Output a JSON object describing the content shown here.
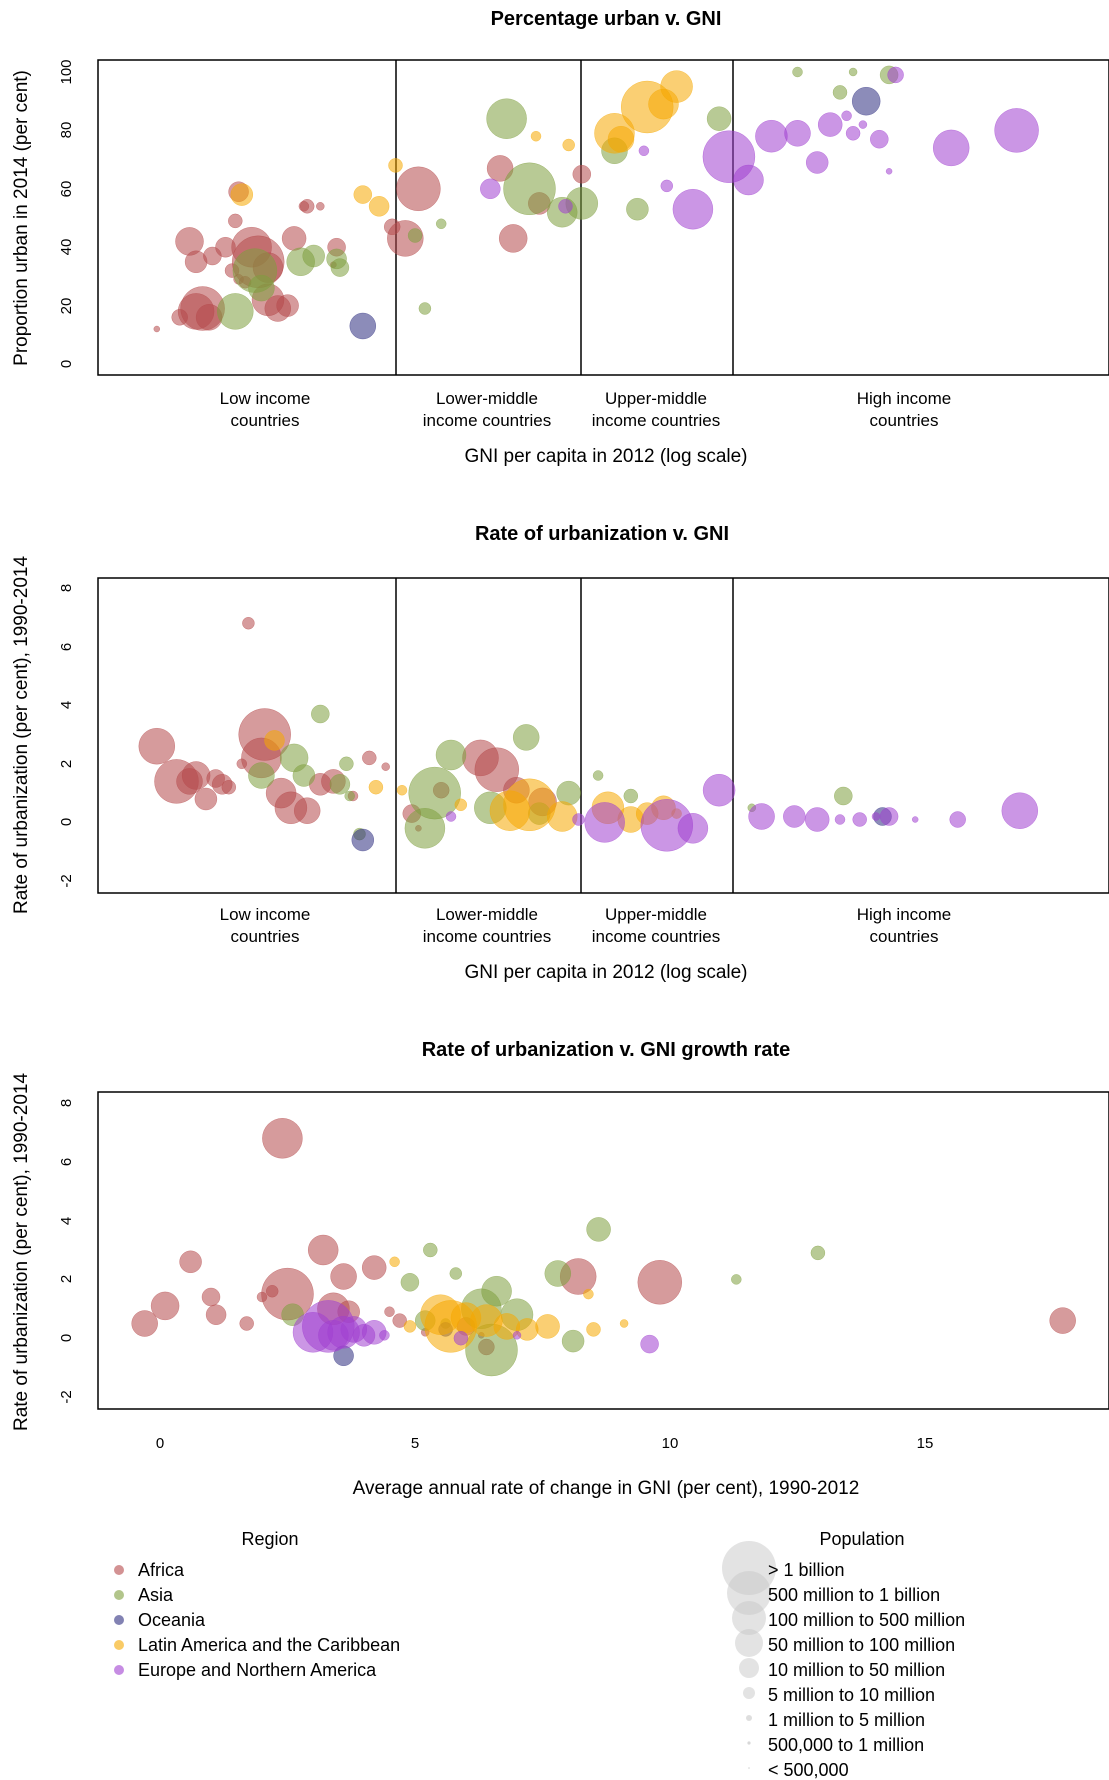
{
  "chart_data": [
    {
      "type": "scatter",
      "title": "Percentage urban v. GNI",
      "xlabel": "GNI per capita in 2012 (log scale)",
      "ylabel": "Proportion urban in 2014 (per cent)",
      "x_scale": "log",
      "ylim": [
        0,
        100
      ],
      "yticks": [
        "0",
        "20",
        "40",
        "60",
        "80",
        "100"
      ],
      "categories": [
        {
          "line1": "Low income",
          "line2": "countries"
        },
        {
          "line1": "Lower-middle",
          "line2": "income countries"
        },
        {
          "line1": "Upper-middle",
          "line2": "income countries"
        },
        {
          "line1": "High income",
          "line2": "countries"
        }
      ],
      "series": [
        {
          "name": "Africa",
          "points": [
            [
              0.18,
              12
            ],
            [
              0.25,
              16
            ],
            [
              0.3,
              18
            ],
            [
              0.32,
              19
            ],
            [
              0.34,
              16
            ],
            [
              0.28,
              42
            ],
            [
              0.3,
              35
            ],
            [
              0.35,
              37
            ],
            [
              0.39,
              40
            ],
            [
              0.41,
              32
            ],
            [
              0.43,
              29
            ],
            [
              0.45,
              28
            ],
            [
              0.47,
              40
            ],
            [
              0.49,
              35
            ],
            [
              0.52,
              33
            ],
            [
              0.52,
              22
            ],
            [
              0.55,
              19
            ],
            [
              0.58,
              20
            ],
            [
              0.6,
              43
            ],
            [
              0.63,
              54
            ],
            [
              0.64,
              54
            ],
            [
              0.68,
              54
            ],
            [
              0.73,
              40
            ],
            [
              0.72,
              34
            ],
            [
              0.9,
              47
            ],
            [
              0.94,
              43
            ],
            [
              0.98,
              60
            ],
            [
              1.23,
              67
            ],
            [
              1.27,
              43
            ],
            [
              1.35,
              55
            ],
            [
              1.48,
              65
            ],
            [
              0.43,
              59
            ],
            [
              0.42,
              49
            ]
          ]
        },
        {
          "name": "Asia",
          "points": [
            [
              0.42,
              18
            ],
            [
              0.48,
              32
            ],
            [
              0.5,
              26
            ],
            [
              0.62,
              35
            ],
            [
              0.66,
              37
            ],
            [
              0.74,
              33
            ],
            [
              0.73,
              36
            ],
            [
              0.97,
              44
            ],
            [
              1.05,
              48
            ],
            [
              1.0,
              19
            ],
            [
              1.25,
              84
            ],
            [
              1.32,
              60
            ],
            [
              1.42,
              52
            ],
            [
              1.48,
              55
            ],
            [
              1.58,
              73
            ],
            [
              1.65,
              53
            ],
            [
              1.9,
              84
            ],
            [
              2.14,
              100
            ],
            [
              2.27,
              93
            ],
            [
              2.31,
              100
            ],
            [
              2.42,
              99
            ]
          ]
        },
        {
          "name": "Oceania",
          "points": [
            [
              0.81,
              13
            ],
            [
              2.35,
              90
            ]
          ]
        },
        {
          "name": "Latin America and the Caribbean",
          "points": [
            [
              0.44,
              58
            ],
            [
              0.81,
              58
            ],
            [
              0.86,
              54
            ],
            [
              0.91,
              68
            ],
            [
              1.34,
              78
            ],
            [
              1.44,
              75
            ],
            [
              1.58,
              79
            ],
            [
              1.68,
              88
            ],
            [
              1.73,
              89
            ],
            [
              1.77,
              95
            ],
            [
              1.6,
              77
            ]
          ]
        },
        {
          "name": "Europe and Northern America",
          "points": [
            [
              1.2,
              60
            ],
            [
              1.43,
              54
            ],
            [
              1.67,
              73
            ],
            [
              1.74,
              61
            ],
            [
              1.82,
              53
            ],
            [
              1.93,
              71
            ],
            [
              1.99,
              63
            ],
            [
              2.06,
              78
            ],
            [
              2.14,
              79
            ],
            [
              2.2,
              69
            ],
            [
              2.24,
              82
            ],
            [
              2.29,
              85
            ],
            [
              2.31,
              79
            ],
            [
              2.34,
              82
            ],
            [
              2.39,
              77
            ],
            [
              2.42,
              66
            ],
            [
              2.44,
              99
            ],
            [
              2.61,
              74
            ],
            [
              2.81,
              80
            ]
          ]
        }
      ]
    },
    {
      "type": "scatter",
      "title": "Rate of urbanization v. GNI",
      "xlabel": "GNI per capita in 2012 (log scale)",
      "ylabel": "Rate of urbanization (per cent), 1990-2014",
      "x_scale": "log",
      "ylim": [
        -2,
        8
      ],
      "yticks": [
        "-2",
        "0",
        "2",
        "4",
        "6",
        "8"
      ],
      "categories": [
        {
          "line1": "Low income",
          "line2": "countries"
        },
        {
          "line1": "Lower-middle",
          "line2": "income countries"
        },
        {
          "line1": "Upper-middle",
          "line2": "income countries"
        },
        {
          "line1": "High income",
          "line2": "countries"
        }
      ],
      "series": [
        {
          "name": "Africa",
          "points": [
            [
              0.18,
              2.6
            ],
            [
              0.24,
              1.4
            ],
            [
              0.28,
              1.4
            ],
            [
              0.3,
              1.6
            ],
            [
              0.33,
              0.8
            ],
            [
              0.36,
              1.5
            ],
            [
              0.38,
              1.3
            ],
            [
              0.4,
              1.2
            ],
            [
              0.44,
              2.0
            ],
            [
              0.46,
              6.8
            ],
            [
              0.5,
              2.2
            ],
            [
              0.51,
              3.0
            ],
            [
              0.56,
              1.0
            ],
            [
              0.59,
              0.5
            ],
            [
              0.64,
              0.4
            ],
            [
              0.68,
              1.3
            ],
            [
              0.72,
              1.4
            ],
            [
              0.78,
              0.9
            ],
            [
              0.83,
              2.2
            ],
            [
              0.88,
              1.9
            ],
            [
              0.96,
              0.3
            ],
            [
              0.98,
              -0.2
            ],
            [
              1.05,
              1.1
            ],
            [
              1.17,
              2.2
            ],
            [
              1.22,
              1.8
            ],
            [
              1.28,
              1.1
            ],
            [
              1.36,
              0.7
            ]
          ]
        },
        {
          "name": "Asia",
          "points": [
            [
              0.5,
              1.6
            ],
            [
              0.6,
              2.2
            ],
            [
              0.63,
              1.6
            ],
            [
              0.68,
              3.7
            ],
            [
              0.74,
              1.3
            ],
            [
              0.76,
              2.0
            ],
            [
              0.77,
              0.9
            ],
            [
              0.8,
              -0.4
            ],
            [
              1.0,
              -0.2
            ],
            [
              1.03,
              1.0
            ],
            [
              1.08,
              2.3
            ],
            [
              1.2,
              0.5
            ],
            [
              1.31,
              2.9
            ],
            [
              1.35,
              0.3
            ],
            [
              1.44,
              1.0
            ],
            [
              1.53,
              1.6
            ],
            [
              1.63,
              0.9
            ],
            [
              2.0,
              0.5
            ],
            [
              2.28,
              0.9
            ]
          ]
        },
        {
          "name": "Oceania",
          "points": [
            [
              0.81,
              -0.6
            ],
            [
              2.4,
              0.2
            ]
          ]
        },
        {
          "name": "Latin America and the Caribbean",
          "points": [
            [
              0.54,
              2.8
            ],
            [
              0.85,
              1.2
            ],
            [
              0.93,
              1.1
            ],
            [
              1.11,
              0.6
            ],
            [
              1.26,
              0.4
            ],
            [
              1.32,
              0.6
            ],
            [
              1.42,
              0.2
            ],
            [
              1.56,
              0.5
            ],
            [
              1.63,
              0.1
            ],
            [
              1.68,
              0.3
            ],
            [
              1.73,
              0.5
            ],
            [
              1.77,
              0.3
            ]
          ]
        },
        {
          "name": "Europe and Northern America",
          "points": [
            [
              1.08,
              0.2
            ],
            [
              1.47,
              0.1
            ],
            [
              1.55,
              0.0
            ],
            [
              1.74,
              -0.1
            ],
            [
              1.82,
              -0.2
            ],
            [
              1.9,
              1.1
            ],
            [
              2.03,
              0.2
            ],
            [
              2.13,
              0.2
            ],
            [
              2.2,
              0.1
            ],
            [
              2.27,
              0.1
            ],
            [
              2.33,
              0.1
            ],
            [
              2.38,
              0.2
            ],
            [
              2.42,
              0.2
            ],
            [
              2.5,
              0.1
            ],
            [
              2.63,
              0.1
            ],
            [
              2.82,
              0.4
            ]
          ]
        }
      ]
    },
    {
      "type": "scatter",
      "title": "Rate of urbanization v. GNI growth rate",
      "xlabel": "Average annual rate of change in GNI (per cent), 1990-2012",
      "ylabel": "Rate of urbanization (per cent), 1990-2014",
      "xlim": [
        -1.2,
        18.8
      ],
      "ylim": [
        -2,
        8
      ],
      "xticks": [
        "0",
        "5",
        "10",
        "15"
      ],
      "yticks": [
        "-2",
        "0",
        "2",
        "4",
        "6",
        "8"
      ],
      "series": [
        {
          "name": "Africa",
          "points": [
            [
              -0.3,
              0.5
            ],
            [
              0.1,
              1.1
            ],
            [
              0.6,
              2.6
            ],
            [
              1.0,
              1.4
            ],
            [
              1.1,
              0.8
            ],
            [
              1.7,
              0.5
            ],
            [
              2.0,
              1.4
            ],
            [
              2.2,
              1.6
            ],
            [
              2.4,
              6.8
            ],
            [
              2.5,
              1.5
            ],
            [
              3.2,
              3.0
            ],
            [
              3.4,
              1.0
            ],
            [
              3.6,
              2.1
            ],
            [
              3.7,
              0.9
            ],
            [
              4.2,
              2.4
            ],
            [
              4.5,
              0.9
            ],
            [
              4.7,
              0.6
            ],
            [
              5.2,
              0.2
            ],
            [
              6.0,
              0.4
            ],
            [
              6.3,
              0.1
            ],
            [
              6.4,
              -0.3
            ],
            [
              8.2,
              2.1
            ],
            [
              9.8,
              1.9
            ],
            [
              17.7,
              0.6
            ]
          ]
        },
        {
          "name": "Asia",
          "points": [
            [
              2.6,
              0.8
            ],
            [
              4.9,
              1.9
            ],
            [
              5.2,
              0.6
            ],
            [
              5.3,
              3.0
            ],
            [
              5.6,
              0.5
            ],
            [
              5.8,
              2.2
            ],
            [
              6.3,
              1.0
            ],
            [
              6.5,
              -0.4
            ],
            [
              6.6,
              1.6
            ],
            [
              7.0,
              0.8
            ],
            [
              7.8,
              2.2
            ],
            [
              8.1,
              -0.1
            ],
            [
              8.6,
              3.7
            ],
            [
              11.3,
              2.0
            ],
            [
              12.9,
              2.9
            ]
          ]
        },
        {
          "name": "Oceania",
          "points": [
            [
              3.6,
              -0.6
            ],
            [
              5.6,
              0.3
            ]
          ]
        },
        {
          "name": "Latin America and the Caribbean",
          "points": [
            [
              4.6,
              2.6
            ],
            [
              4.9,
              0.4
            ],
            [
              5.5,
              0.8
            ],
            [
              5.7,
              0.4
            ],
            [
              6.0,
              0.7
            ],
            [
              6.4,
              0.6
            ],
            [
              6.8,
              0.4
            ],
            [
              7.2,
              0.3
            ],
            [
              7.6,
              0.4
            ],
            [
              8.4,
              1.5
            ],
            [
              8.5,
              0.3
            ],
            [
              9.1,
              0.5
            ]
          ]
        },
        {
          "name": "Europe and Northern America",
          "points": [
            [
              3.0,
              0.2
            ],
            [
              3.3,
              0.4
            ],
            [
              3.4,
              0.1
            ],
            [
              3.6,
              0.2
            ],
            [
              3.8,
              0.3
            ],
            [
              4.0,
              0.1
            ],
            [
              4.2,
              0.2
            ],
            [
              4.4,
              0.1
            ],
            [
              5.9,
              0.0
            ],
            [
              7.0,
              0.1
            ],
            [
              9.6,
              -0.2
            ]
          ]
        }
      ]
    }
  ],
  "legend": {
    "region_title": "Region",
    "regions": [
      {
        "name": "Africa",
        "color": "#b5494b"
      },
      {
        "name": "Asia",
        "color": "#7e9e3e"
      },
      {
        "name": "Oceania",
        "color": "#2e2e80"
      },
      {
        "name": "Latin America and the Caribbean",
        "color": "#f5a800"
      },
      {
        "name": "Europe and Northern America",
        "color": "#a040d0"
      }
    ],
    "population_title": "Population",
    "population_classes": [
      "> 1 billion",
      "500 million to 1 billion",
      "100 million to 500 million",
      "50 million to 100 million",
      "10 million to 50 million",
      "5 million to 10 million",
      "1 million to 5 million",
      "500,000 to 1 million",
      "< 500,000"
    ]
  }
}
